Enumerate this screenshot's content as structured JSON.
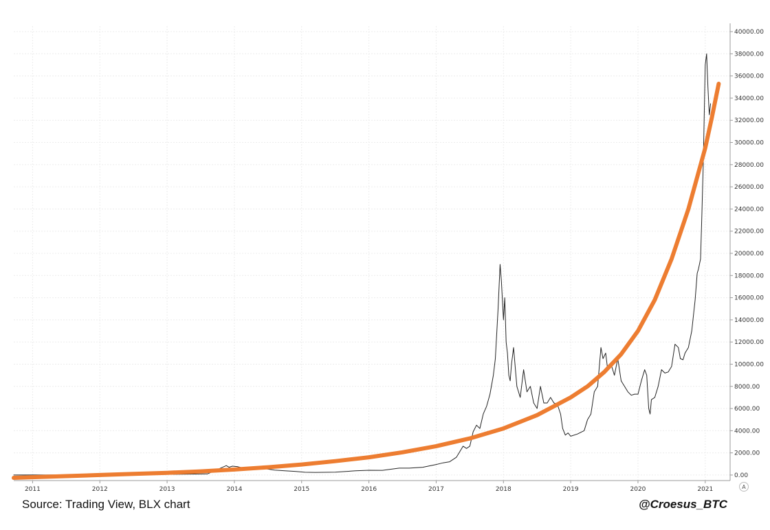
{
  "chart_data": {
    "type": "line",
    "title": "",
    "xlabel": "",
    "ylabel": "",
    "xlim": [
      2010.72,
      2021.37
    ],
    "ylim": [
      -500,
      40500
    ],
    "y_ticks": [
      0,
      2000,
      4000,
      6000,
      8000,
      10000,
      12000,
      14000,
      16000,
      18000,
      20000,
      22000,
      24000,
      26000,
      28000,
      30000,
      32000,
      34000,
      36000,
      38000,
      40000
    ],
    "y_tick_labels": [
      "0.00",
      "2000.00",
      "4000.00",
      "6000.00",
      "8000.00",
      "10000.00",
      "12000.00",
      "14000.00",
      "16000.00",
      "18000.00",
      "20000.00",
      "22000.00",
      "24000.00",
      "26000.00",
      "28000.00",
      "30000.00",
      "32000.00",
      "34000.00",
      "36000.00",
      "38000.00",
      "40000.00"
    ],
    "x_ticks": [
      2011,
      2012,
      2013,
      2014,
      2015,
      2016,
      2017,
      2018,
      2019,
      2020,
      2021
    ],
    "x_tick_labels": [
      "2011",
      "2012",
      "2013",
      "2014",
      "2015",
      "2016",
      "2017",
      "2018",
      "2019",
      "2020",
      "2021"
    ],
    "grid": true,
    "legend": "none",
    "series": [
      {
        "color": "#222222",
        "x": [
          2010.72,
          2011.5,
          2012.5,
          2013.0,
          2013.6,
          2013.88,
          2013.92,
          2013.97,
          2014.05,
          2014.15,
          2014.25,
          2014.35,
          2014.45,
          2014.6,
          2014.75,
          2014.9,
          2015.05,
          2015.2,
          2015.5,
          2015.8,
          2016.0,
          2016.2,
          2016.45,
          2016.6,
          2016.8,
          2017.0,
          2017.1,
          2017.2,
          2017.3,
          2017.4,
          2017.45,
          2017.5,
          2017.55,
          2017.6,
          2017.65,
          2017.7,
          2017.75,
          2017.8,
          2017.85,
          2017.88,
          2017.92,
          2017.95,
          2017.97,
          2018.0,
          2018.02,
          2018.04,
          2018.06,
          2018.08,
          2018.1,
          2018.12,
          2018.15,
          2018.2,
          2018.25,
          2018.3,
          2018.35,
          2018.4,
          2018.45,
          2018.5,
          2018.55,
          2018.6,
          2018.65,
          2018.7,
          2018.75,
          2018.8,
          2018.85,
          2018.88,
          2018.92,
          2018.96,
          2019.0,
          2019.1,
          2019.2,
          2019.25,
          2019.3,
          2019.35,
          2019.4,
          2019.45,
          2019.48,
          2019.52,
          2019.55,
          2019.6,
          2019.65,
          2019.7,
          2019.75,
          2019.8,
          2019.85,
          2019.9,
          2019.95,
          2020.0,
          2020.05,
          2020.1,
          2020.13,
          2020.16,
          2020.18,
          2020.2,
          2020.25,
          2020.3,
          2020.35,
          2020.4,
          2020.45,
          2020.5,
          2020.55,
          2020.6,
          2020.63,
          2020.67,
          2020.7,
          2020.75,
          2020.8,
          2020.85,
          2020.88,
          2020.9,
          2020.93,
          2020.95,
          2020.97,
          2021.0,
          2021.02,
          2021.04,
          2021.06,
          2021.08
        ],
        "y": [
          0,
          5,
          10,
          60,
          100,
          850,
          700,
          800,
          750,
          600,
          500,
          620,
          580,
          450,
          380,
          330,
          250,
          240,
          260,
          380,
          430,
          420,
          620,
          620,
          700,
          950,
          1100,
          1200,
          1600,
          2600,
          2400,
          2600,
          3900,
          4500,
          4200,
          5500,
          6200,
          7300,
          9000,
          10500,
          15000,
          19000,
          17500,
          14000,
          16000,
          12000,
          11000,
          9000,
          8500,
          10000,
          11500,
          8000,
          7000,
          9500,
          7500,
          8000,
          6500,
          6000,
          8000,
          6500,
          6500,
          7000,
          6500,
          6400,
          5500,
          4200,
          3600,
          3800,
          3500,
          3700,
          4000,
          5000,
          5500,
          7500,
          8000,
          11500,
          10500,
          11000,
          9500,
          10000,
          9000,
          10500,
          8500,
          8000,
          7500,
          7200,
          7300,
          7300,
          8500,
          9500,
          9000,
          6000,
          5500,
          6800,
          7000,
          8000,
          9500,
          9200,
          9300,
          9800,
          11800,
          11500,
          10500,
          10400,
          11000,
          11500,
          13000,
          15800,
          18200,
          18600,
          19500,
          23500,
          28000,
          37000,
          38000,
          35000,
          32500,
          33500
        ]
      },
      {
        "color": "#ed7d31",
        "x": [
          2010.72,
          2011.5,
          2012.0,
          2012.5,
          2013.0,
          2013.5,
          2014.0,
          2014.5,
          2015.0,
          2015.5,
          2016.0,
          2016.5,
          2017.0,
          2017.5,
          2018.0,
          2018.5,
          2019.0,
          2019.25,
          2019.5,
          2019.75,
          2020.0,
          2020.25,
          2020.5,
          2020.75,
          2021.0,
          2021.1,
          2021.2
        ],
        "y": [
          -250,
          -100,
          0,
          100,
          200,
          330,
          500,
          700,
          950,
          1250,
          1600,
          2050,
          2600,
          3300,
          4200,
          5400,
          7000,
          8000,
          9300,
          10900,
          13000,
          15800,
          19500,
          24000,
          29500,
          32300,
          35300
        ]
      }
    ]
  },
  "footer": {
    "source": "Source: Trading View, BLX chart",
    "handle": "@Croesus_BTC"
  },
  "auto_button": "A"
}
